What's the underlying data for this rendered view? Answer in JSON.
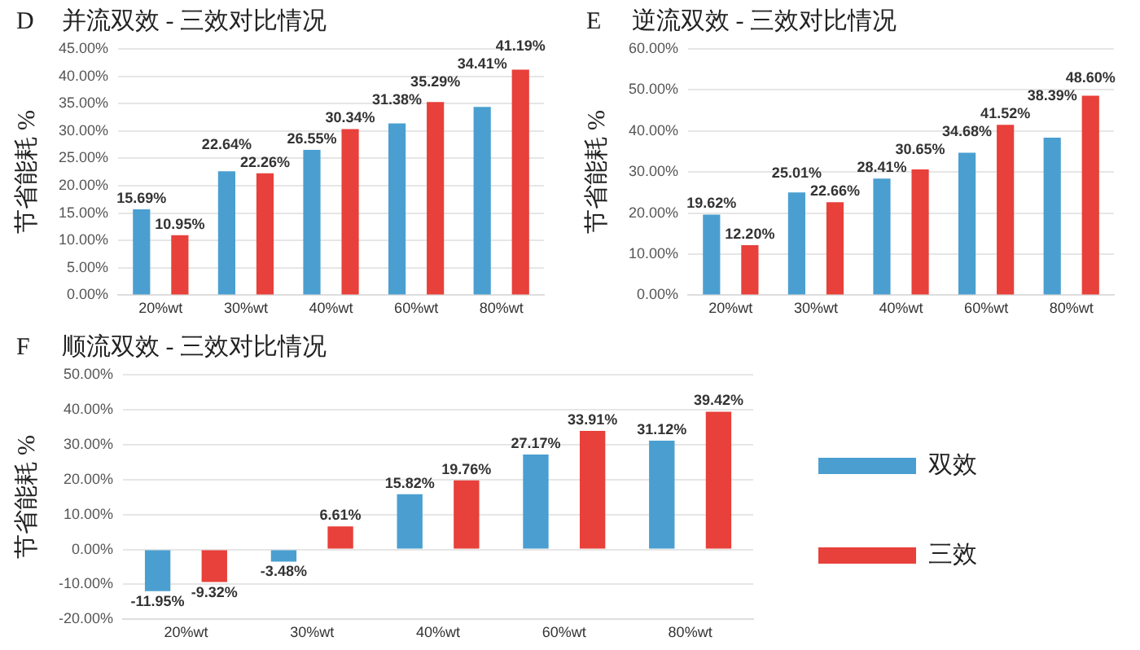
{
  "chart_data": [
    {
      "type": "bar",
      "title": "并流双效 - 三效对比情况",
      "annotations": [
        "D"
      ],
      "ylabel": "节省能耗 %",
      "categories": [
        "20%wt",
        "30%wt",
        "40%wt",
        "60%wt",
        "80%wt"
      ],
      "series": [
        {
          "color": "#4a9fd0",
          "values": [
            15.69,
            22.64,
            26.55,
            31.38,
            34.41
          ],
          "value_labels": [
            "15.69%",
            "22.64%",
            "26.55%",
            "31.38%",
            "34.41%"
          ]
        },
        {
          "color": "#e8403a",
          "values": [
            10.95,
            22.26,
            30.34,
            35.29,
            41.19
          ],
          "value_labels": [
            "10.95%",
            "22.26%",
            "30.34%",
            "35.29%",
            "41.19%"
          ]
        }
      ],
      "ylim": [
        0,
        45
      ],
      "yticks": [
        {
          "value": 0,
          "label": "0.00%"
        },
        {
          "value": 5,
          "label": "5.00%"
        },
        {
          "value": 10,
          "label": "10.00%"
        },
        {
          "value": 15,
          "label": "15.00%"
        },
        {
          "value": 20,
          "label": "20.00%"
        },
        {
          "value": 25,
          "label": "25.00%"
        },
        {
          "value": 30,
          "label": "30.00%"
        },
        {
          "value": 35,
          "label": "35.00%"
        },
        {
          "value": 40,
          "label": "40.00%"
        },
        {
          "value": 45,
          "label": "45.00%"
        }
      ],
      "grid": "y",
      "legend": false
    },
    {
      "type": "bar",
      "title": "逆流双效 - 三效对比情况",
      "annotations": [
        "E"
      ],
      "ylabel": "节省能耗 %",
      "categories": [
        "20%wt",
        "30%wt",
        "40%wt",
        "60%wt",
        "80%wt"
      ],
      "series": [
        {
          "color": "#4a9fd0",
          "values": [
            19.62,
            25.01,
            28.41,
            34.68,
            38.39
          ],
          "value_labels": [
            "19.62%",
            "25.01%",
            "28.41%",
            "34.68%",
            "38.39%"
          ]
        },
        {
          "color": "#e8403a",
          "values": [
            12.2,
            22.66,
            30.65,
            41.52,
            48.6
          ],
          "value_labels": [
            "12.20%",
            "22.66%",
            "30.65%",
            "41.52%",
            "48.60%"
          ]
        }
      ],
      "ylim": [
        0,
        60
      ],
      "yticks": [
        {
          "value": 0,
          "label": "0.00%"
        },
        {
          "value": 10,
          "label": "10.00%"
        },
        {
          "value": 20,
          "label": "20.00%"
        },
        {
          "value": 30,
          "label": "30.00%"
        },
        {
          "value": 40,
          "label": "40.00%"
        },
        {
          "value": 50,
          "label": "50.00%"
        },
        {
          "value": 60,
          "label": "60.00%"
        }
      ],
      "grid": "y",
      "legend": false
    },
    {
      "type": "bar",
      "title": "顺流双效 - 三效对比情况",
      "annotations": [
        "F"
      ],
      "ylabel": "节省能耗 %",
      "categories": [
        "20%wt",
        "30%wt",
        "40%wt",
        "60%wt",
        "80%wt"
      ],
      "series": [
        {
          "name": "双效",
          "color": "#4a9fd0",
          "values": [
            -11.95,
            -3.48,
            15.82,
            27.17,
            31.12
          ],
          "value_labels": [
            "-11.95%",
            "-3.48%",
            "15.82%",
            "27.17%",
            "31.12%"
          ]
        },
        {
          "name": "三效",
          "color": "#e8403a",
          "values": [
            -9.32,
            6.61,
            19.76,
            33.91,
            39.42
          ],
          "value_labels": [
            "-9.32%",
            "6.61%",
            "19.76%",
            "33.91%",
            "39.42%"
          ]
        }
      ],
      "ylim": [
        -20,
        50
      ],
      "yticks": [
        {
          "value": -20,
          "label": "-20.00%"
        },
        {
          "value": -10,
          "label": "-10.00%"
        },
        {
          "value": 0,
          "label": "0.00%"
        },
        {
          "value": 10,
          "label": "10.00%"
        },
        {
          "value": 20,
          "label": "20.00%"
        },
        {
          "value": 30,
          "label": "30.00%"
        },
        {
          "value": 40,
          "label": "40.00%"
        },
        {
          "value": 50,
          "label": "50.00%"
        }
      ],
      "grid": "y",
      "legend": "right"
    }
  ]
}
